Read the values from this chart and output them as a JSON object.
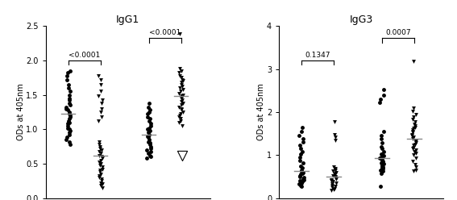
{
  "title_left": "IgG1",
  "title_right": "IgG3",
  "ylabel": "ODs at 405nm",
  "ylim_left": [
    0,
    2.5
  ],
  "ylim_right": [
    0,
    4
  ],
  "yticks_left": [
    0.0,
    0.5,
    1.0,
    1.5,
    2.0,
    2.5
  ],
  "yticks_right": [
    0,
    1,
    2,
    3,
    4
  ],
  "pval_left_mono": "<0.0001",
  "pval_left_bi": "<0.0001",
  "pval_right_mono": "0.1347",
  "pval_right_bi": "0.0007",
  "igg1_mono_ubo5": [
    1.85,
    1.82,
    1.78,
    1.72,
    1.65,
    1.6,
    1.55,
    1.5,
    1.45,
    1.42,
    1.38,
    1.35,
    1.32,
    1.3,
    1.28,
    1.25,
    1.22,
    1.2,
    1.18,
    1.15,
    1.12,
    1.1,
    1.08,
    1.05,
    1.02,
    1.0,
    0.98,
    0.95,
    0.92,
    0.88,
    0.85,
    0.82,
    0.78
  ],
  "igg1_mono_msp3": [
    1.78,
    1.72,
    1.65,
    1.55,
    1.48,
    1.42,
    1.38,
    1.3,
    1.25,
    1.18,
    1.12,
    0.82,
    0.78,
    0.75,
    0.72,
    0.7,
    0.68,
    0.65,
    0.62,
    0.6,
    0.58,
    0.55,
    0.52,
    0.5,
    0.48,
    0.45,
    0.42,
    0.4,
    0.38,
    0.35,
    0.32,
    0.3,
    0.28,
    0.25,
    0.22,
    0.2,
    0.18,
    0.15
  ],
  "igg1_bi_ubo5": [
    1.38,
    1.32,
    1.28,
    1.25,
    1.22,
    1.18,
    1.15,
    1.12,
    1.08,
    1.05,
    1.02,
    1.0,
    0.98,
    0.95,
    0.92,
    0.9,
    0.88,
    0.85,
    0.82,
    0.8,
    0.78,
    0.75,
    0.72,
    0.7,
    0.68,
    0.65,
    0.62,
    0.6,
    0.58
  ],
  "igg1_bi_msp3_filled": [
    2.38,
    1.88,
    1.85,
    1.82,
    1.78,
    1.75,
    1.72,
    1.7,
    1.68,
    1.65,
    1.62,
    1.6,
    1.58,
    1.55,
    1.52,
    1.5,
    1.48,
    1.45,
    1.42,
    1.4,
    1.38,
    1.35,
    1.32,
    1.3,
    1.28,
    1.25,
    1.22,
    1.2,
    1.18,
    1.15,
    1.12,
    1.1,
    1.05
  ],
  "igg1_bi_msp3_open": [
    0.62
  ],
  "igg3_mono_ubo5": [
    1.65,
    1.55,
    1.45,
    1.38,
    1.3,
    1.22,
    1.15,
    1.08,
    1.02,
    0.95,
    0.88,
    0.82,
    0.75,
    0.7,
    0.65,
    0.62,
    0.6,
    0.58,
    0.55,
    0.52,
    0.5,
    0.48,
    0.45,
    0.42,
    0.4,
    0.38,
    0.35,
    0.32,
    0.3,
    0.28
  ],
  "igg3_mono_msp3": [
    1.78,
    1.48,
    1.42,
    1.35,
    0.72,
    0.68,
    0.65,
    0.62,
    0.6,
    0.58,
    0.55,
    0.52,
    0.5,
    0.48,
    0.45,
    0.42,
    0.4,
    0.38,
    0.35,
    0.32,
    0.3,
    0.28,
    0.25,
    0.22,
    0.2,
    0.18
  ],
  "igg3_bi_ubo5": [
    2.52,
    2.4,
    2.3,
    2.22,
    1.55,
    1.45,
    1.38,
    1.28,
    1.2,
    1.15,
    1.08,
    1.02,
    1.0,
    0.98,
    0.95,
    0.92,
    0.9,
    0.88,
    0.85,
    0.82,
    0.8,
    0.78,
    0.75,
    0.72,
    0.7,
    0.68,
    0.65,
    0.62,
    0.58,
    0.28
  ],
  "igg3_bi_msp3": [
    3.18,
    2.1,
    2.02,
    1.95,
    1.88,
    1.82,
    1.78,
    1.72,
    1.68,
    1.65,
    1.62,
    1.58,
    1.55,
    1.52,
    1.48,
    1.45,
    1.42,
    1.38,
    1.35,
    1.32,
    1.28,
    1.25,
    1.22,
    1.18,
    1.15,
    1.12,
    1.08,
    1.05,
    1.0,
    0.92,
    0.85,
    0.78,
    0.72,
    0.65,
    0.62
  ],
  "markersize": 3.5,
  "fontsize_title": 9,
  "fontsize_label": 7,
  "fontsize_tick": 7,
  "fontsize_pval": 6.5,
  "fontsize_xticklabel": 6.5,
  "fontsize_group": 7
}
